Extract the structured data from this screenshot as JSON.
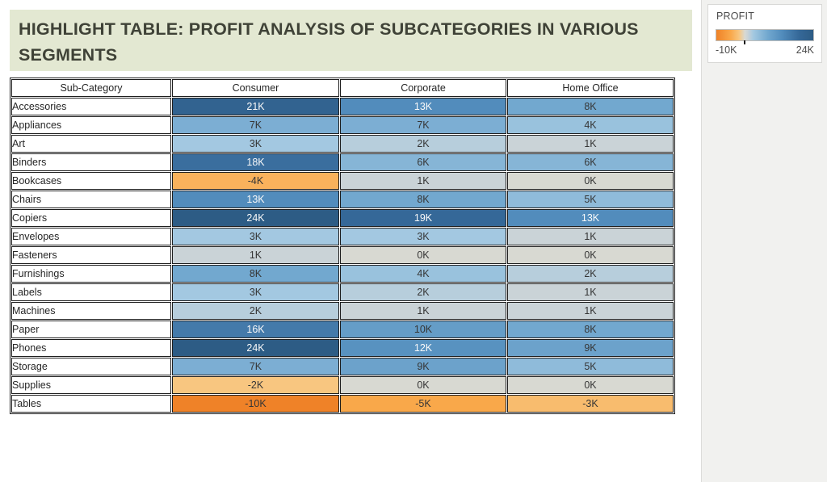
{
  "page": {
    "main_background": "#ffffff",
    "sidebar_background": "#f1f1ef"
  },
  "header": {
    "title": "HIGHLIGHT TABLE: PROFIT ANALYSIS OF SUBCATEGORIES IN VARIOUS SEGMENTS",
    "background": "#e3e8d2",
    "text_color": "#3f4237"
  },
  "legend": {
    "title": "PROFIT",
    "min_label": "-10K",
    "max_label": "24K",
    "min_value": -10,
    "max_value": 24,
    "zero_tick_value": 0,
    "white_text_threshold": 12,
    "dark_text_color": "#363636",
    "light_text_color": "#fafafa",
    "color_stops": [
      {
        "value": -10,
        "color": "#ef8228"
      },
      {
        "value": -5,
        "color": "#f9a84a"
      },
      {
        "value": -2,
        "color": "#f8c680"
      },
      {
        "value": 0,
        "color": "#d8d9d2"
      },
      {
        "value": 1,
        "color": "#cad3d7"
      },
      {
        "value": 3,
        "color": "#a3c8e1"
      },
      {
        "value": 8,
        "color": "#72a8cf"
      },
      {
        "value": 13,
        "color": "#528cbc"
      },
      {
        "value": 19,
        "color": "#356898"
      },
      {
        "value": 24,
        "color": "#2d5c85"
      }
    ]
  },
  "chart_data": {
    "type": "heatmap",
    "title": "HIGHLIGHT TABLE: PROFIT ANALYSIS OF SUBCATEGORIES IN VARIOUS SEGMENTS",
    "legend_title": "PROFIT",
    "unit": "K",
    "value_range": [
      -10,
      24
    ],
    "row_header": "Sub-Category",
    "columns": [
      "Consumer",
      "Corporate",
      "Home Office"
    ],
    "rows": [
      "Accessories",
      "Appliances",
      "Art",
      "Binders",
      "Bookcases",
      "Chairs",
      "Copiers",
      "Envelopes",
      "Fasteners",
      "Furnishings",
      "Labels",
      "Machines",
      "Paper",
      "Phones",
      "Storage",
      "Supplies",
      "Tables"
    ],
    "values": [
      [
        21,
        13,
        8
      ],
      [
        7,
        7,
        4
      ],
      [
        3,
        2,
        1
      ],
      [
        18,
        6,
        6
      ],
      [
        -4,
        1,
        0
      ],
      [
        13,
        8,
        5
      ],
      [
        24,
        19,
        13
      ],
      [
        3,
        3,
        1
      ],
      [
        1,
        0,
        0
      ],
      [
        8,
        4,
        2
      ],
      [
        3,
        2,
        1
      ],
      [
        2,
        1,
        1
      ],
      [
        16,
        10,
        8
      ],
      [
        24,
        12,
        9
      ],
      [
        7,
        9,
        5
      ],
      [
        -2,
        0,
        0
      ],
      [
        -10,
        -5,
        -3
      ]
    ]
  }
}
